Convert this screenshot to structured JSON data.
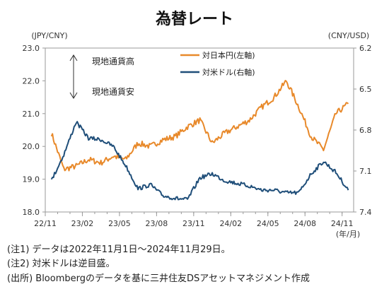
{
  "chart_data": {
    "type": "line",
    "title": "為替レート",
    "left_axis_label": "(JPY/CNY)",
    "right_axis_label": "(CNY/USD)",
    "x_unit_label": "(年/月)",
    "x_tick_labels": [
      "22/11",
      "23/02",
      "23/05",
      "23/08",
      "23/11",
      "24/02",
      "24/05",
      "24/08",
      "24/11"
    ],
    "left_ylim": [
      18.0,
      23.0
    ],
    "left_y_ticks": [
      "18.0",
      "19.0",
      "20.0",
      "21.0",
      "22.0",
      "23.0"
    ],
    "right_ylim": [
      6.2,
      7.4
    ],
    "right_axis_inverted": true,
    "right_y_ticks": [
      "6.2",
      "6.5",
      "6.8",
      "7.1",
      "7.4"
    ],
    "annotation_up": "現地通貨高",
    "annotation_down": "現地通貨安",
    "series": [
      {
        "name": "対日本円(左軸)",
        "axis": "left",
        "color": "#E8892A",
        "x": [
          "2022-11",
          "2022-12",
          "2023-01",
          "2023-02",
          "2023-03",
          "2023-04",
          "2023-05",
          "2023-06",
          "2023-07",
          "2023-08",
          "2023-09",
          "2023-10",
          "2023-11",
          "2023-12",
          "2024-01",
          "2024-02",
          "2024-03",
          "2024-04",
          "2024-05",
          "2024-06",
          "2024-07",
          "2024-08",
          "2024-09",
          "2024-10",
          "2024-11"
        ],
        "values": [
          20.4,
          19.3,
          19.4,
          19.6,
          19.5,
          19.7,
          19.6,
          20.1,
          20.0,
          20.2,
          20.3,
          20.6,
          20.8,
          20.1,
          20.4,
          20.6,
          20.8,
          21.2,
          21.5,
          22.0,
          21.2,
          20.3,
          19.9,
          21.0,
          21.3
        ]
      },
      {
        "name": "対米ドル(右軸)",
        "axis": "right",
        "color": "#1F4E79",
        "x": [
          "2022-11",
          "2022-12",
          "2023-01",
          "2023-02",
          "2023-03",
          "2023-04",
          "2023-05",
          "2023-06",
          "2023-07",
          "2023-08",
          "2023-09",
          "2023-10",
          "2023-11",
          "2023-12",
          "2024-01",
          "2024-02",
          "2024-03",
          "2024-04",
          "2024-05",
          "2024-06",
          "2024-07",
          "2024-08",
          "2024-09",
          "2024-10",
          "2024-11"
        ],
        "values": [
          7.17,
          6.98,
          6.74,
          6.86,
          6.87,
          6.92,
          7.06,
          7.23,
          7.2,
          7.28,
          7.3,
          7.31,
          7.15,
          7.12,
          7.17,
          7.19,
          7.21,
          7.24,
          7.24,
          7.26,
          7.26,
          7.12,
          7.03,
          7.11,
          7.24
        ]
      }
    ]
  },
  "notes": [
    "(注1) データは2022年11月1日～2024年11月29日。",
    "(注2) 対米ドルは逆目盛。",
    "(出所) Bloombergのデータを基に三井住友DSアセットマネジメント作成"
  ]
}
